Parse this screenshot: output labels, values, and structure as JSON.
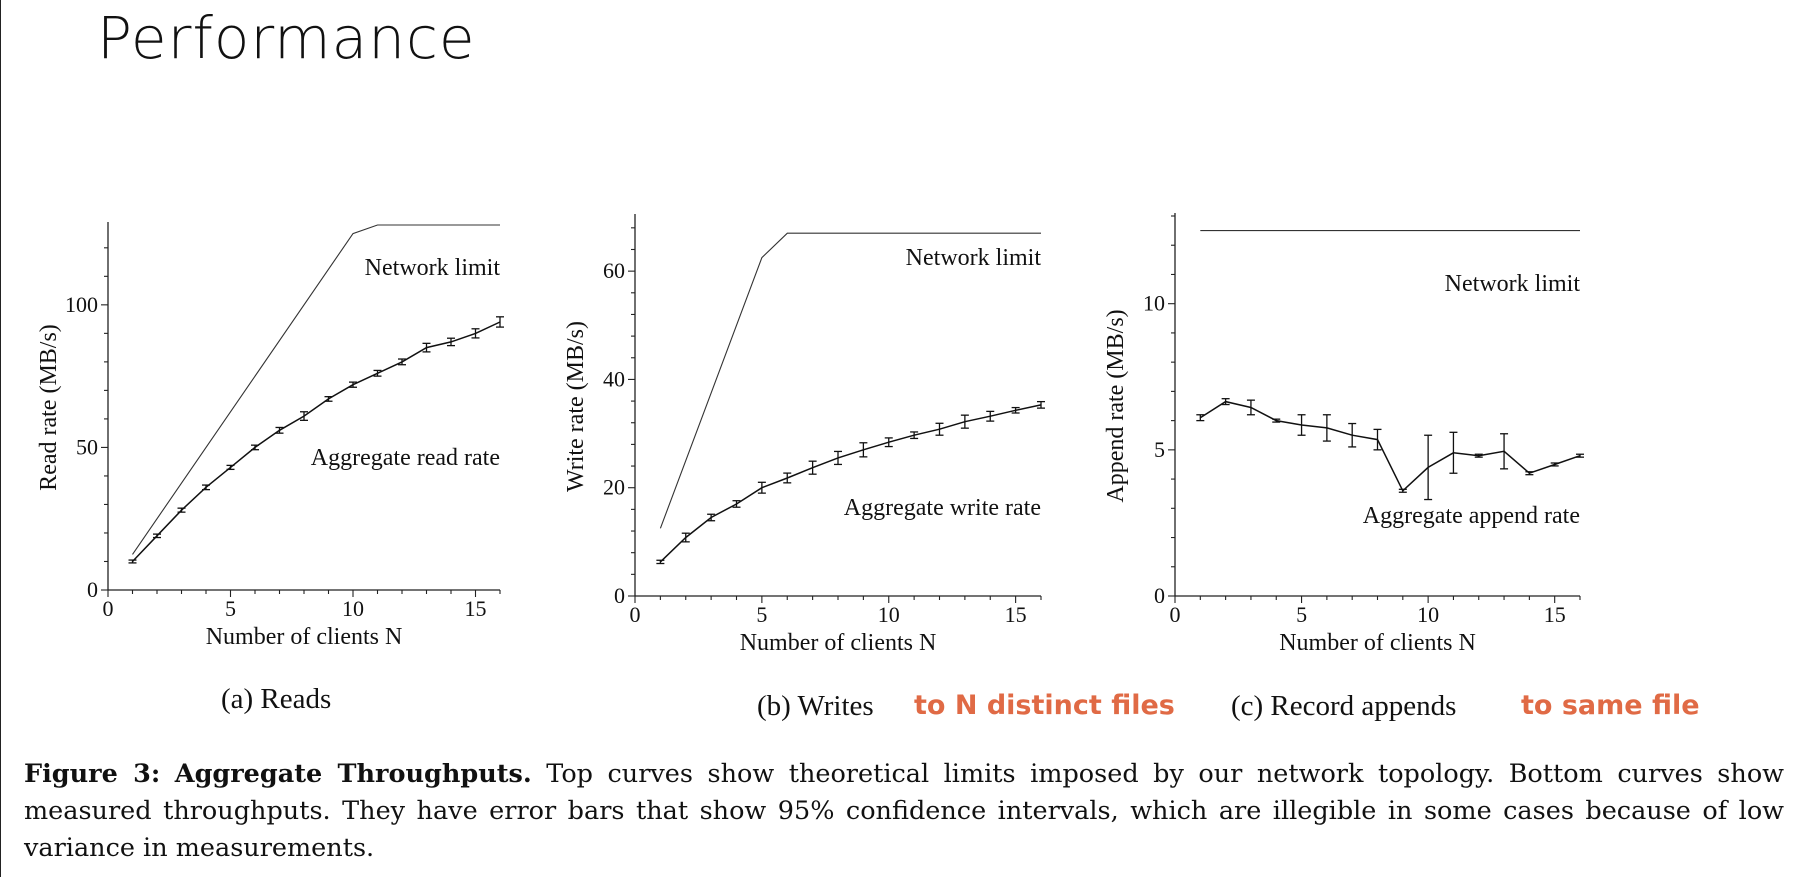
{
  "slide": {
    "title": "Performance"
  },
  "subcaptions": [
    "(a) Reads",
    "(b) Writes",
    "(c) Record appends"
  ],
  "annotations": [
    "to N distinct files",
    "to same file"
  ],
  "figure_caption": {
    "label": "Figure 3:",
    "heading": "Aggregate Throughputs.",
    "text": "Top curves show theoretical limits imposed by our network topology. Bottom curves show measured throughputs. They have error bars that show 95% confidence intervals, which are illegible in some cases because of low variance in measurements."
  },
  "chart_data": [
    {
      "type": "line",
      "xlabel": "Number of clients N",
      "ylabel": "Read rate (MB/s)",
      "xlim": [
        0,
        16
      ],
      "ylim": [
        0,
        128
      ],
      "xticks": [
        0,
        5,
        10,
        15
      ],
      "yticks": [
        0,
        50,
        100
      ],
      "series": [
        {
          "name": "Network limit",
          "x": [
            1,
            10,
            11,
            16
          ],
          "y": [
            12.5,
            125,
            128,
            128
          ]
        },
        {
          "name": "Aggregate read rate",
          "x": [
            1,
            2,
            3,
            4,
            5,
            6,
            7,
            8,
            9,
            10,
            11,
            12,
            13,
            14,
            15,
            16
          ],
          "y": [
            10,
            19,
            28,
            36,
            43,
            50,
            56,
            61,
            67,
            72,
            76,
            80,
            85,
            87,
            90,
            94
          ],
          "err": [
            0.5,
            0.6,
            0.7,
            0.8,
            0.7,
            0.8,
            1.0,
            1.5,
            0.8,
            0.9,
            1.0,
            1.0,
            1.5,
            1.3,
            1.6,
            1.8
          ]
        }
      ]
    },
    {
      "type": "line",
      "xlabel": "Number of clients N",
      "ylabel": "Write rate (MB/s)",
      "xlim": [
        0,
        16
      ],
      "ylim": [
        0,
        70
      ],
      "xticks": [
        0,
        5,
        10,
        15
      ],
      "yticks": [
        0,
        20,
        40,
        60
      ],
      "series": [
        {
          "name": "Network limit",
          "x": [
            1,
            5,
            6,
            16
          ],
          "y": [
            12.5,
            62.5,
            67,
            67
          ]
        },
        {
          "name": "Aggregate write rate",
          "x": [
            1,
            2,
            3,
            4,
            5,
            6,
            7,
            8,
            9,
            10,
            11,
            12,
            13,
            14,
            15,
            16
          ],
          "y": [
            6.3,
            10.8,
            14.5,
            17,
            20,
            21.8,
            23.7,
            25.5,
            27,
            28.4,
            29.7,
            30.8,
            32.2,
            33.2,
            34.3,
            35.3
          ],
          "err": [
            0.3,
            0.8,
            0.6,
            0.6,
            1.0,
            0.9,
            1.2,
            1.2,
            1.3,
            0.8,
            0.6,
            1.1,
            1.2,
            0.9,
            0.5,
            0.6
          ]
        }
      ]
    },
    {
      "type": "line",
      "xlabel": "Number of clients N",
      "ylabel": "Append rate (MB/s)",
      "xlim": [
        0,
        16
      ],
      "ylim": [
        0,
        13
      ],
      "xticks": [
        0,
        5,
        10,
        15
      ],
      "yticks": [
        0,
        5,
        10
      ],
      "series": [
        {
          "name": "Network limit",
          "x": [
            1,
            16
          ],
          "y": [
            12.5,
            12.5
          ]
        },
        {
          "name": "Aggregate append rate",
          "x": [
            1,
            2,
            3,
            4,
            5,
            6,
            7,
            8,
            9,
            10,
            11,
            12,
            13,
            14,
            15,
            16
          ],
          "y": [
            6.1,
            6.65,
            6.45,
            6.0,
            5.85,
            5.75,
            5.5,
            5.35,
            3.6,
            4.4,
            4.9,
            4.8,
            4.95,
            4.2,
            4.5,
            4.8
          ],
          "err": [
            0.1,
            0.1,
            0.25,
            0.05,
            0.35,
            0.45,
            0.4,
            0.35,
            0.05,
            1.1,
            0.7,
            0.05,
            0.6,
            0.05,
            0.05,
            0.05
          ]
        }
      ]
    }
  ]
}
